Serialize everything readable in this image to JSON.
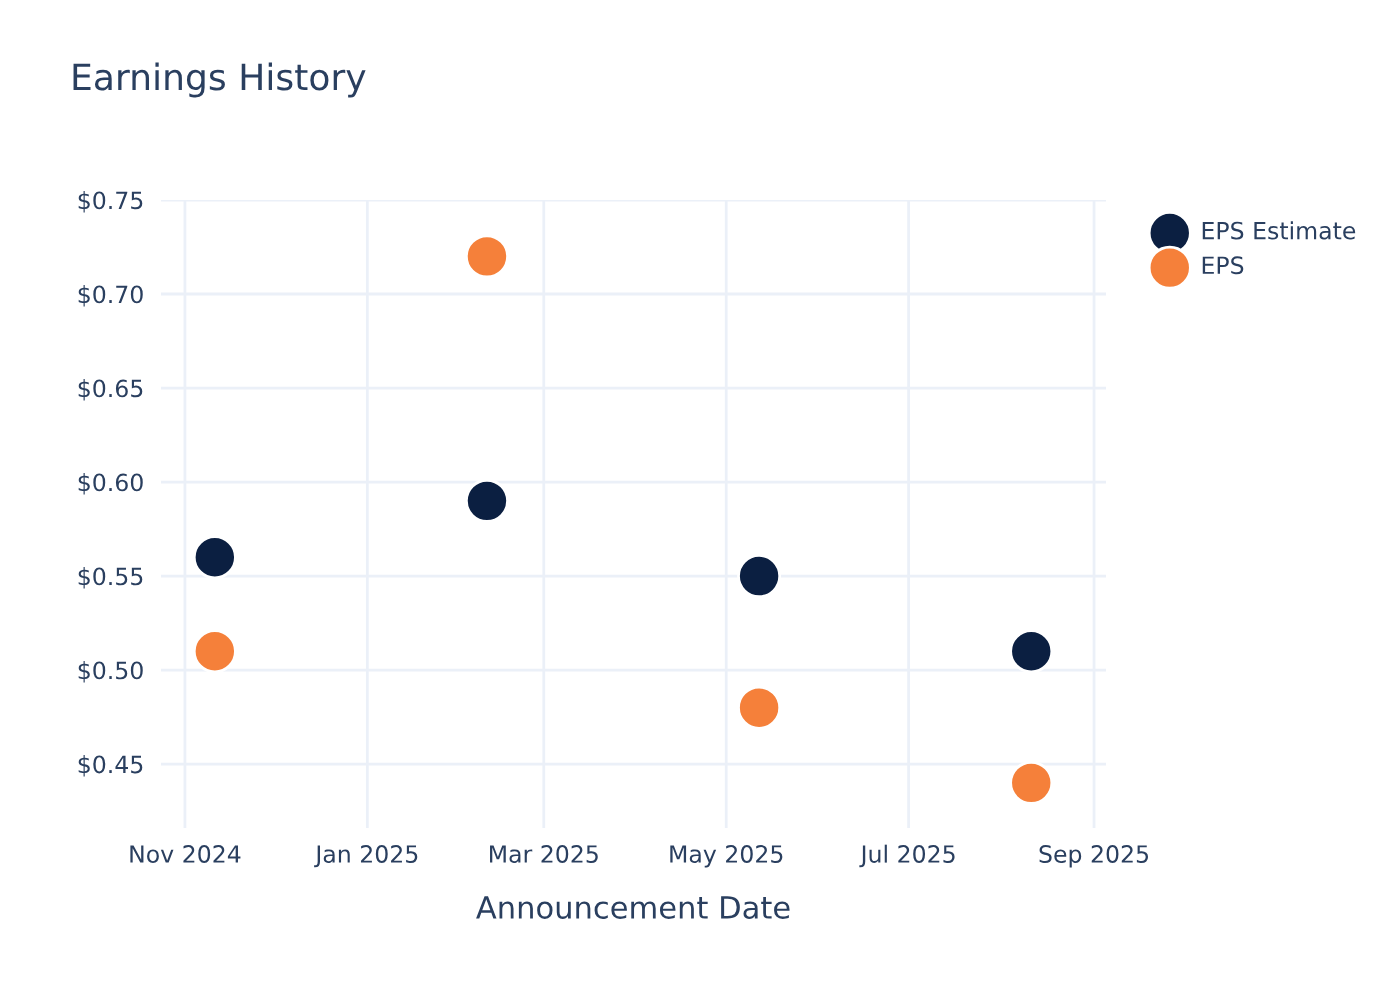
{
  "chart_data": {
    "type": "scatter",
    "title": "Earnings History",
    "xlabel": "Announcement Date",
    "x": [
      "2024-11-11",
      "2025-02-10",
      "2025-05-12",
      "2025-08-11"
    ],
    "series": [
      {
        "name": "EPS Estimate",
        "color": "#0b1f41",
        "values": [
          0.56,
          0.59,
          0.55,
          0.51
        ]
      },
      {
        "name": "EPS",
        "color": "#f5803a",
        "values": [
          0.51,
          0.72,
          0.48,
          0.44
        ]
      }
    ],
    "xlim": [
      "2024-10-24",
      "2025-09-05"
    ],
    "xticks": [
      {
        "value": "2024-11-01",
        "label": "Nov 2024"
      },
      {
        "value": "2025-01-01",
        "label": "Jan 2025"
      },
      {
        "value": "2025-03-01",
        "label": "Mar 2025"
      },
      {
        "value": "2025-05-01",
        "label": "May 2025"
      },
      {
        "value": "2025-07-01",
        "label": "Jul 2025"
      },
      {
        "value": "2025-09-01",
        "label": "Sep 2025"
      }
    ],
    "ylim": [
      0.416,
      0.75
    ],
    "yticks": [
      {
        "value": 0.45,
        "label": "$0.45"
      },
      {
        "value": 0.5,
        "label": "$0.50"
      },
      {
        "value": 0.55,
        "label": "$0.55"
      },
      {
        "value": 0.6,
        "label": "$0.60"
      },
      {
        "value": 0.65,
        "label": "$0.65"
      },
      {
        "value": 0.7,
        "label": "$0.70"
      },
      {
        "value": 0.75,
        "label": "$0.75"
      }
    ],
    "grid": true,
    "legend": "top right",
    "marker": "circle"
  }
}
